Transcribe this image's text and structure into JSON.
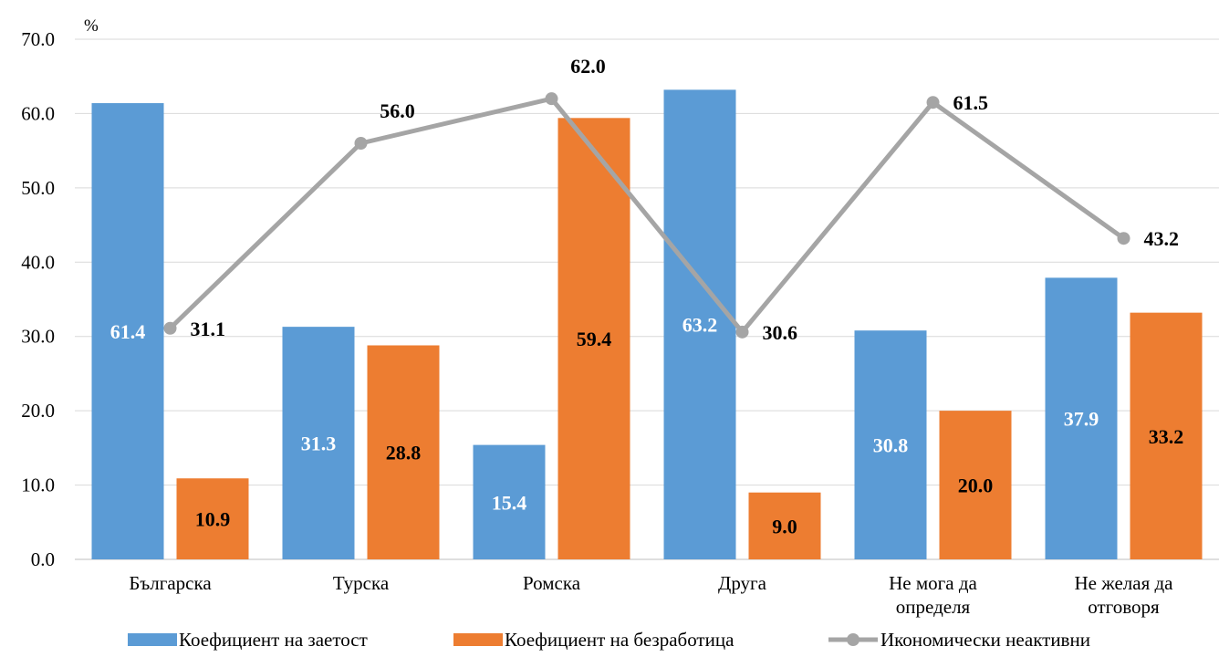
{
  "chart_data": {
    "type": "bar",
    "unit_label": "%",
    "categories": [
      [
        "Българска"
      ],
      [
        "Турска"
      ],
      [
        "Ромска"
      ],
      [
        "Друга"
      ],
      [
        "Не мога да",
        "определя"
      ],
      [
        "Не желая да",
        "отговоря"
      ]
    ],
    "series": [
      {
        "name": "Коефициент на заетост",
        "kind": "bar",
        "color": "#5B9BD5",
        "values": [
          61.4,
          31.3,
          15.4,
          63.2,
          30.8,
          37.9
        ],
        "labels": [
          "61.4",
          "31.3",
          "15.4",
          "63.2",
          "30.8",
          "37.9"
        ]
      },
      {
        "name": "Коефициент на безработица",
        "kind": "bar",
        "color": "#ED7D31",
        "values": [
          10.9,
          28.8,
          59.4,
          9.0,
          20.0,
          33.2
        ],
        "labels": [
          "10.9",
          "28.8",
          "59.4",
          "9.0",
          "20.0",
          "33.2"
        ]
      },
      {
        "name": "Икономически неактивни",
        "kind": "line",
        "color": "#A5A5A5",
        "values": [
          31.1,
          56.0,
          62.0,
          30.6,
          61.5,
          43.2
        ],
        "labels": [
          "31.1",
          "56.0",
          "62.0",
          "30.6",
          "61.5",
          "43.2"
        ]
      }
    ],
    "ylim": [
      0,
      70
    ],
    "yticks": [
      "0.0",
      "10.0",
      "20.0",
      "30.0",
      "40.0",
      "50.0",
      "60.0",
      "70.0"
    ],
    "grid": true,
    "legend_position": "bottom"
  }
}
